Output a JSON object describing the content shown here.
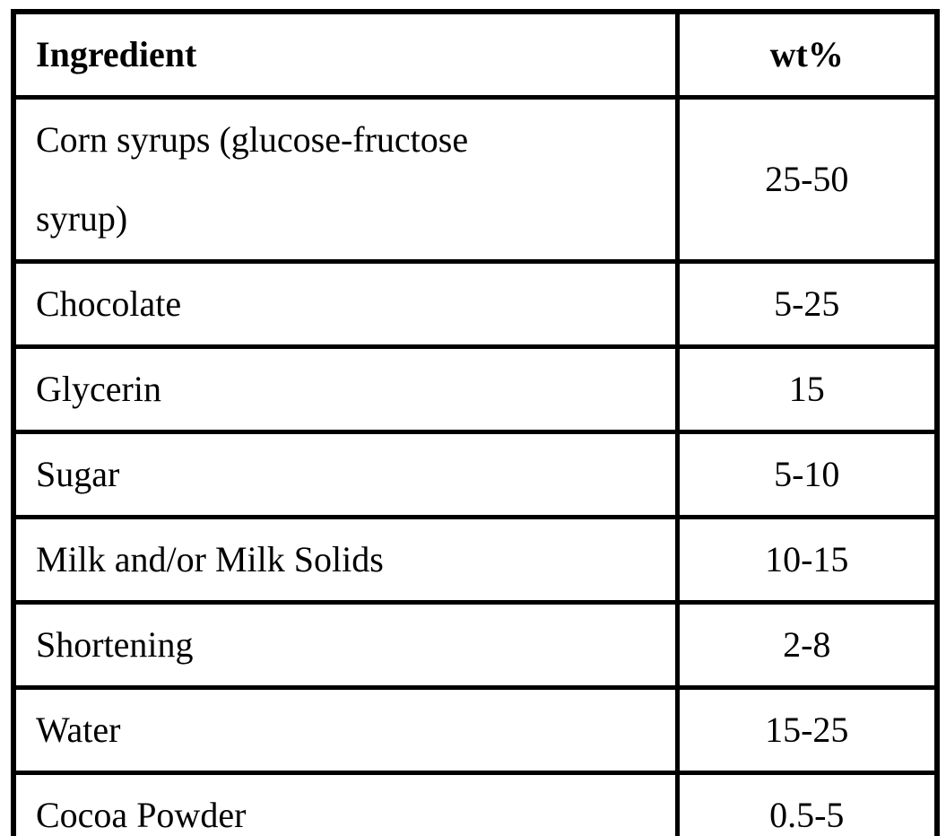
{
  "table": {
    "columns": [
      {
        "label": "Ingredient"
      },
      {
        "label": "wt%"
      }
    ],
    "rows": [
      {
        "ingredient": "Corn syrups (glucose-fructose\nsyrup)",
        "wt": "25-50"
      },
      {
        "ingredient": "Chocolate",
        "wt": "5-25"
      },
      {
        "ingredient": "Glycerin",
        "wt": "15"
      },
      {
        "ingredient": "Sugar",
        "wt": "5-10"
      },
      {
        "ingredient": "Milk and/or Milk Solids",
        "wt": "10-15"
      },
      {
        "ingredient": "Shortening",
        "wt": "2-8"
      },
      {
        "ingredient": "Water",
        "wt": "15-25"
      },
      {
        "ingredient": "Cocoa Powder",
        "wt": "0.5-5"
      }
    ],
    "colors": {
      "border": "#000000",
      "text": "#000000",
      "background": "#ffffff"
    }
  }
}
